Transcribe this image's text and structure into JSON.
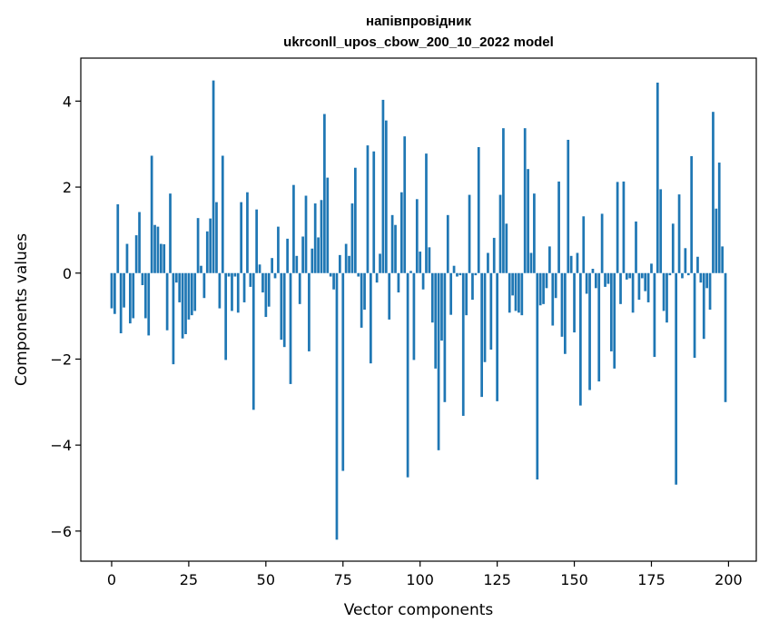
{
  "chart_data": {
    "type": "bar",
    "title_line1": "напівпровідник",
    "title_line2": "ukrconll_upos_cbow_200_10_2022 model",
    "xlabel": "Vector components",
    "ylabel": "Components values",
    "xlim": [
      -10,
      209
    ],
    "ylim": [
      -6.7,
      5.0
    ],
    "xticks": [
      0,
      25,
      50,
      75,
      100,
      125,
      150,
      175,
      200
    ],
    "xtick_labels": [
      "0",
      "25",
      "50",
      "75",
      "100",
      "125",
      "150",
      "175",
      "200"
    ],
    "yticks": [
      -6,
      -4,
      -2,
      0,
      2,
      4
    ],
    "ytick_labels": [
      "−6",
      "−4",
      "−2",
      "0",
      "2",
      "4"
    ],
    "bar_color": "#1f77b4",
    "grid": false,
    "values": [
      -0.82,
      -0.95,
      1.6,
      -1.4,
      -0.8,
      0.68,
      -1.17,
      -1.05,
      0.88,
      1.42,
      -0.28,
      -1.05,
      -1.45,
      2.73,
      1.12,
      1.08,
      0.68,
      0.67,
      -1.33,
      1.85,
      -2.12,
      -0.22,
      -0.68,
      -1.52,
      -1.42,
      -1.08,
      -0.98,
      -0.88,
      1.28,
      0.17,
      -0.58,
      0.97,
      1.27,
      4.48,
      1.65,
      -0.82,
      2.73,
      -2.02,
      -0.08,
      -0.88,
      -0.08,
      -0.92,
      1.65,
      -0.68,
      1.88,
      -0.32,
      -3.18,
      1.48,
      0.2,
      -0.45,
      -1.02,
      -0.78,
      0.35,
      -0.12,
      1.08,
      -1.55,
      -1.72,
      0.8,
      -2.58,
      2.05,
      0.4,
      -0.72,
      0.85,
      1.8,
      -1.82,
      0.57,
      1.62,
      0.83,
      1.7,
      3.7,
      2.22,
      -0.08,
      -0.38,
      -6.2,
      0.42,
      -4.6,
      0.68,
      0.4,
      1.62,
      2.45,
      -0.08,
      -1.27,
      -0.85,
      2.97,
      -2.1,
      2.83,
      -0.22,
      0.45,
      4.03,
      3.55,
      -1.08,
      1.35,
      1.12,
      -0.45,
      1.88,
      3.18,
      -4.75,
      0.05,
      -2.02,
      1.72,
      0.5,
      -0.38,
      2.78,
      0.6,
      -1.15,
      -2.22,
      -4.12,
      -1.57,
      -3.0,
      1.35,
      -0.97,
      0.17,
      -0.08,
      -0.05,
      -3.32,
      -0.98,
      1.82,
      -0.62,
      -0.05,
      2.93,
      -2.88,
      -2.07,
      0.47,
      -1.78,
      0.82,
      -2.98,
      1.82,
      3.37,
      1.15,
      -0.92,
      -0.52,
      -0.88,
      -0.92,
      -0.98,
      3.37,
      2.42,
      0.47,
      1.85,
      -4.8,
      -0.75,
      -0.72,
      -0.35,
      0.62,
      -1.22,
      -0.58,
      2.13,
      -1.48,
      -1.88,
      3.1,
      0.4,
      -1.38,
      0.47,
      -3.08,
      1.32,
      -0.48,
      -2.72,
      0.1,
      -0.35,
      -2.52,
      1.38,
      -0.32,
      -0.25,
      -1.82,
      -2.22,
      2.12,
      -0.72,
      2.13,
      -0.15,
      -0.12,
      -0.92,
      1.2,
      -0.62,
      -0.12,
      -0.42,
      -0.68,
      0.22,
      -1.95,
      4.43,
      1.95,
      -0.88,
      -1.15,
      -0.05,
      1.15,
      -4.92,
      1.83,
      -0.12,
      0.58,
      -0.05,
      2.72,
      -1.97,
      0.38,
      -0.22,
      -1.53,
      -0.35,
      -0.85,
      3.75,
      1.5,
      2.57,
      0.62,
      -3.0
    ]
  }
}
